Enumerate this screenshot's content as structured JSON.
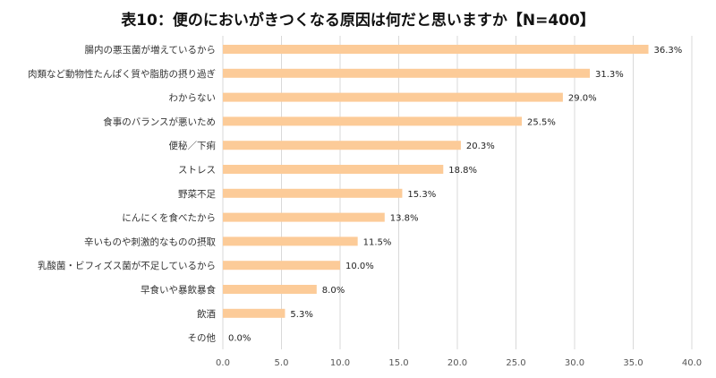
{
  "chart_data": {
    "type": "bar",
    "orientation": "horizontal",
    "title": "表10：便のにおいがきつくなる原因は何だと思いますか【N=400】",
    "categories": [
      "腸内の悪玉菌が増えているから",
      "肉類など動物性たんぱく質や脂肪の摂り過ぎ",
      "わからない",
      "食事のバランスが悪いため",
      "便秘／下痢",
      "ストレス",
      "野菜不足",
      "にんにくを食べたから",
      "辛いものや刺激的なものの摂取",
      "乳酸菌・ビフィズス菌が不足しているから",
      "早食いや暴飲暴食",
      "飲酒",
      "その他"
    ],
    "values": [
      36.3,
      31.3,
      29.0,
      25.5,
      20.3,
      18.8,
      15.3,
      13.8,
      11.5,
      10.0,
      8.0,
      5.3,
      0.0
    ],
    "value_labels": [
      "36.3%",
      "31.3%",
      "29.0%",
      "25.5%",
      "20.3%",
      "18.8%",
      "15.3%",
      "13.8%",
      "11.5%",
      "10.0%",
      "8.0%",
      "5.3%",
      "0.0%"
    ],
    "xlim": [
      0,
      40
    ],
    "xticks": [
      "0.0",
      "5.0",
      "10.0",
      "15.0",
      "20.0",
      "25.0",
      "30.0",
      "35.0",
      "40.0"
    ],
    "xlabel": "",
    "ylabel": "",
    "grid": "vertical",
    "legend": "none",
    "bar_color": "#FCCB98",
    "grid_color": "#D9D9D9"
  }
}
